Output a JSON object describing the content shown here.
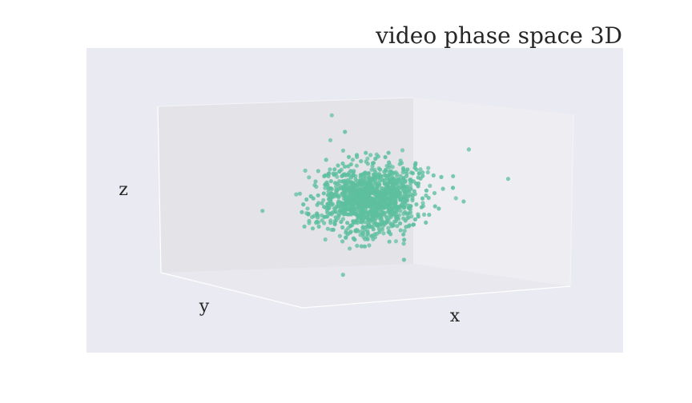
{
  "chart_data": {
    "type": "scatter",
    "projection": "3d",
    "title": "video phase space 3D",
    "xlabel": "x",
    "ylabel": "y",
    "zlabel": "z",
    "grid": false,
    "legend": "none",
    "marker_color": "#5dbf9e",
    "panel_bg": "#eaeaf2",
    "series": [
      {
        "cluster": {
          "count": 1200,
          "center": [
            0.52,
            0.5,
            0.48
          ],
          "spread": [
            0.09,
            0.05,
            0.1
          ]
        },
        "outliers": [
          {
            "x": 0.4,
            "y": 0.55,
            "z": 0.98
          },
          {
            "x": 0.78,
            "y": 0.3,
            "z": 0.78
          },
          {
            "x": 0.9,
            "y": 0.25,
            "z": 0.6
          }
        ]
      }
    ]
  }
}
